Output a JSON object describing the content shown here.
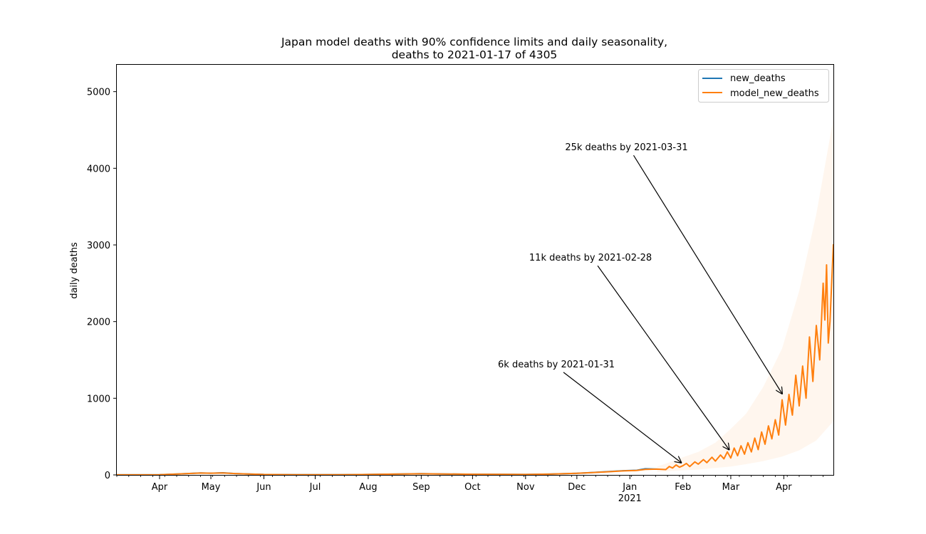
{
  "chart_data": {
    "type": "line",
    "title_line1": "Japan model deaths with 90% confidence limits and daily seasonality,",
    "title_line2": "deaths to 2021-01-17 of 4305",
    "xlabel": "",
    "ylabel": "daily deaths",
    "x_range": [
      "2020-03-07",
      "2021-04-30"
    ],
    "ylim": [
      0,
      5350
    ],
    "y_ticks": [
      0,
      1000,
      2000,
      3000,
      4000,
      5000
    ],
    "x_ticks": [
      {
        "date": "2020-04-01",
        "label": "Apr"
      },
      {
        "date": "2020-05-01",
        "label": "May"
      },
      {
        "date": "2020-06-01",
        "label": "Jun"
      },
      {
        "date": "2020-07-01",
        "label": "Jul"
      },
      {
        "date": "2020-08-01",
        "label": "Aug"
      },
      {
        "date": "2020-09-01",
        "label": "Sep"
      },
      {
        "date": "2020-10-01",
        "label": "Oct"
      },
      {
        "date": "2020-11-01",
        "label": "Nov"
      },
      {
        "date": "2020-12-01",
        "label": "Dec"
      },
      {
        "date": "2021-01-01",
        "label": "Jan",
        "sublabel": "2021"
      },
      {
        "date": "2021-02-01",
        "label": "Feb"
      },
      {
        "date": "2021-03-01",
        "label": "Mar"
      },
      {
        "date": "2021-04-01",
        "label": "Apr"
      }
    ],
    "grid": false,
    "legend_position": "top-right",
    "colors": {
      "new_deaths": "#1f77b4",
      "model_new_deaths": "#ff7f0e",
      "ci_fill": "#ff7f0e"
    },
    "series": [
      {
        "name": "new_deaths",
        "points": [
          [
            "2020-03-07",
            1
          ],
          [
            "2020-04-01",
            3
          ],
          [
            "2020-04-15",
            15
          ],
          [
            "2020-04-25",
            25
          ],
          [
            "2020-05-01",
            22
          ],
          [
            "2020-05-08",
            28
          ],
          [
            "2020-05-15",
            18
          ],
          [
            "2020-05-25",
            10
          ],
          [
            "2020-06-01",
            6
          ],
          [
            "2020-06-20",
            3
          ],
          [
            "2020-07-15",
            2
          ],
          [
            "2020-08-01",
            6
          ],
          [
            "2020-08-20",
            12
          ],
          [
            "2020-09-01",
            16
          ],
          [
            "2020-09-15",
            12
          ],
          [
            "2020-10-01",
            8
          ],
          [
            "2020-10-20",
            7
          ],
          [
            "2020-11-01",
            6
          ],
          [
            "2020-11-15",
            10
          ],
          [
            "2020-12-01",
            20
          ],
          [
            "2020-12-10",
            32
          ],
          [
            "2020-12-20",
            45
          ],
          [
            "2020-12-28",
            55
          ],
          [
            "2021-01-05",
            60
          ],
          [
            "2021-01-10",
            80
          ],
          [
            "2021-01-17",
            75
          ]
        ]
      },
      {
        "name": "model_new_deaths",
        "points": [
          [
            "2020-03-07",
            1
          ],
          [
            "2020-04-01",
            3
          ],
          [
            "2020-04-15",
            15
          ],
          [
            "2020-04-25",
            24
          ],
          [
            "2020-05-01",
            22
          ],
          [
            "2020-05-08",
            26
          ],
          [
            "2020-05-15",
            18
          ],
          [
            "2020-05-25",
            10
          ],
          [
            "2020-06-01",
            6
          ],
          [
            "2020-06-20",
            3
          ],
          [
            "2020-07-15",
            2
          ],
          [
            "2020-08-01",
            6
          ],
          [
            "2020-08-20",
            12
          ],
          [
            "2020-09-01",
            15
          ],
          [
            "2020-09-15",
            12
          ],
          [
            "2020-10-01",
            8
          ],
          [
            "2020-10-20",
            7
          ],
          [
            "2020-11-01",
            6
          ],
          [
            "2020-11-15",
            10
          ],
          [
            "2020-12-01",
            20
          ],
          [
            "2020-12-10",
            30
          ],
          [
            "2020-12-20",
            42
          ],
          [
            "2020-12-28",
            52
          ],
          [
            "2021-01-05",
            58
          ],
          [
            "2021-01-10",
            72
          ],
          [
            "2021-01-17",
            75
          ],
          [
            "2021-01-22",
            70
          ],
          [
            "2021-01-24",
            110
          ],
          [
            "2021-01-26",
            90
          ],
          [
            "2021-01-28",
            130
          ],
          [
            "2021-01-30",
            100
          ],
          [
            "2021-02-01",
            120
          ],
          [
            "2021-02-03",
            150
          ],
          [
            "2021-02-05",
            110
          ],
          [
            "2021-02-08",
            170
          ],
          [
            "2021-02-10",
            140
          ],
          [
            "2021-02-13",
            200
          ],
          [
            "2021-02-15",
            160
          ],
          [
            "2021-02-18",
            230
          ],
          [
            "2021-02-20",
            180
          ],
          [
            "2021-02-23",
            260
          ],
          [
            "2021-02-25",
            210
          ],
          [
            "2021-02-27",
            300
          ],
          [
            "2021-03-01",
            220
          ],
          [
            "2021-03-03",
            350
          ],
          [
            "2021-03-05",
            250
          ],
          [
            "2021-03-07",
            380
          ],
          [
            "2021-03-09",
            270
          ],
          [
            "2021-03-11",
            420
          ],
          [
            "2021-03-13",
            300
          ],
          [
            "2021-03-15",
            480
          ],
          [
            "2021-03-17",
            330
          ],
          [
            "2021-03-19",
            560
          ],
          [
            "2021-03-21",
            400
          ],
          [
            "2021-03-23",
            640
          ],
          [
            "2021-03-25",
            470
          ],
          [
            "2021-03-27",
            720
          ],
          [
            "2021-03-29",
            520
          ],
          [
            "2021-03-31",
            980
          ],
          [
            "2021-04-02",
            650
          ],
          [
            "2021-04-04",
            1050
          ],
          [
            "2021-04-06",
            780
          ],
          [
            "2021-04-08",
            1300
          ],
          [
            "2021-04-10",
            900
          ],
          [
            "2021-04-12",
            1420
          ],
          [
            "2021-04-14",
            1000
          ],
          [
            "2021-04-16",
            1800
          ],
          [
            "2021-04-18",
            1220
          ],
          [
            "2021-04-20",
            1950
          ],
          [
            "2021-04-22",
            1500
          ],
          [
            "2021-04-24",
            2500
          ],
          [
            "2021-04-25",
            2020
          ],
          [
            "2021-04-26",
            2740
          ],
          [
            "2021-04-27",
            1720
          ],
          [
            "2021-04-28",
            2000
          ],
          [
            "2021-04-30",
            3010
          ]
        ]
      }
    ],
    "confidence_band": {
      "name": "90% confidence limits",
      "points": [
        [
          "2021-01-17",
          40,
          110
        ],
        [
          "2021-01-25",
          50,
          170
        ],
        [
          "2021-02-01",
          60,
          230
        ],
        [
          "2021-02-10",
          70,
          300
        ],
        [
          "2021-02-20",
          90,
          420
        ],
        [
          "2021-03-01",
          110,
          600
        ],
        [
          "2021-03-10",
          140,
          800
        ],
        [
          "2021-03-20",
          180,
          1150
        ],
        [
          "2021-03-31",
          240,
          1650
        ],
        [
          "2021-04-10",
          320,
          2400
        ],
        [
          "2021-04-20",
          450,
          3400
        ],
        [
          "2021-04-30",
          700,
          4650
        ]
      ]
    },
    "annotations": [
      {
        "text": "6k deaths by 2021-01-31",
        "text_date": "2020-11-19",
        "text_value": 1450,
        "arrow_date": "2021-01-31",
        "arrow_value": 160
      },
      {
        "text": "11k deaths by 2021-02-28",
        "text_date": "2020-12-09",
        "text_value": 2840,
        "arrow_date": "2021-02-28",
        "arrow_value": 330
      },
      {
        "text": "25k deaths by 2021-03-31",
        "text_date": "2020-12-30",
        "text_value": 4280,
        "arrow_date": "2021-03-31",
        "arrow_value": 1060
      }
    ]
  }
}
